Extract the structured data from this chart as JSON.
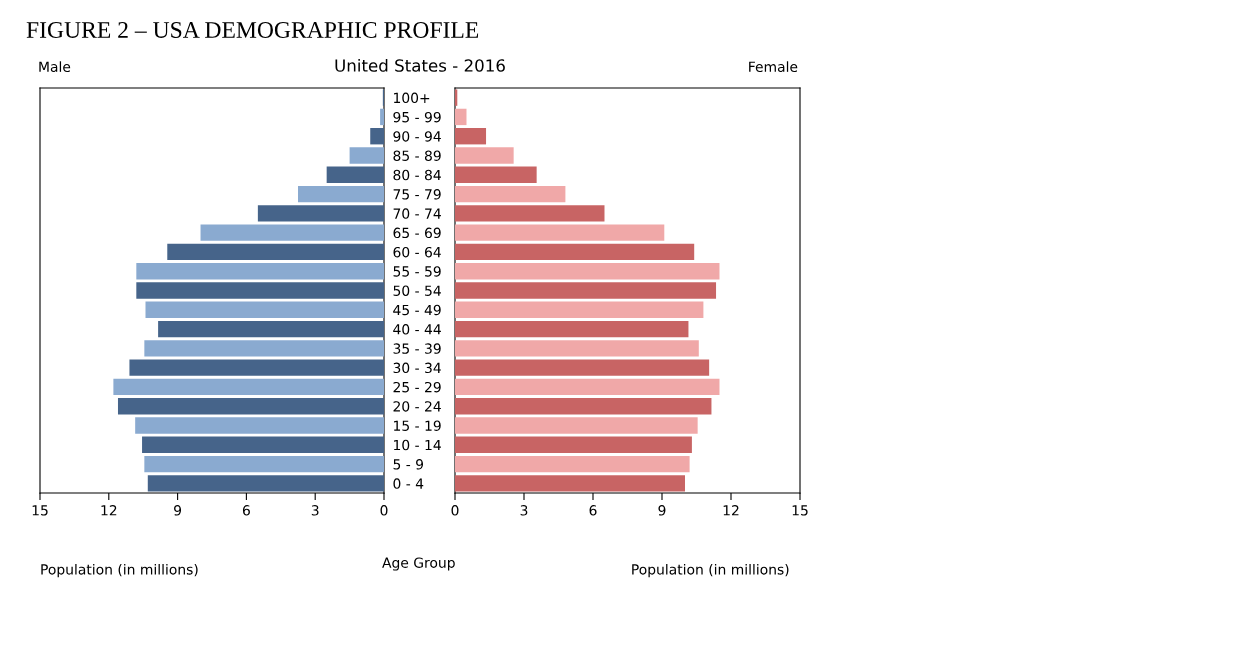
{
  "chart_data": [
    {
      "type": "bar",
      "orientation": "horizontal",
      "title": "FIGURE 2 – USA DEMOGRAPHIC PROFILE",
      "subtitle": "United States - 2016",
      "xlabel": "Population (in millions)",
      "annotations": [
        "Male"
      ],
      "tick_labels": "x",
      "values": [
        0.05,
        0.17,
        0.6,
        1.5,
        2.5,
        3.75,
        5.5,
        8.0,
        9.45,
        10.8,
        10.8,
        10.4,
        9.85,
        10.45,
        11.1,
        11.8,
        11.6,
        10.85,
        10.55,
        10.45,
        10.3
      ],
      "colors": [
        "#46648a",
        "#8aaad0",
        "#46648a",
        "#8aaad0",
        "#46648a",
        "#8aaad0",
        "#46648a",
        "#8aaad0",
        "#46648a",
        "#8aaad0",
        "#46648a",
        "#8aaad0",
        "#46648a",
        "#8aaad0",
        "#46648a",
        "#8aaad0",
        "#46648a",
        "#8aaad0",
        "#46648a",
        "#8aaad0",
        "#46648a"
      ],
      "xlim": [
        15,
        0
      ],
      "xticks": [
        15,
        12,
        9,
        6,
        3,
        0
      ],
      "grid": false,
      "legend": false
    },
    {
      "type": "bar",
      "orientation": "horizontal",
      "xlabel": "Population (in millions)",
      "ylabel": "Age Group",
      "annotations": [
        "Female"
      ],
      "categories": [
        "100+",
        "95 - 99",
        "90 - 94",
        "85 - 89",
        "80 - 84",
        "75 - 79",
        "70 - 74",
        "65 - 69",
        "60 - 64",
        "55 - 59",
        "50 - 54",
        "45 - 49",
        "40 - 44",
        "35 - 39",
        "30 - 34",
        "25 - 29",
        "20 - 24",
        "15 - 19",
        "10 - 14",
        "5 - 9",
        "0 - 4"
      ],
      "values": [
        0.1,
        0.5,
        1.35,
        2.55,
        3.55,
        4.8,
        6.5,
        9.1,
        10.4,
        11.5,
        11.35,
        10.8,
        10.15,
        10.6,
        11.05,
        11.5,
        11.15,
        10.55,
        10.3,
        10.2,
        10.0
      ],
      "colors": [
        "#c86464",
        "#f0a8a8",
        "#c86464",
        "#f0a8a8",
        "#c86464",
        "#f0a8a8",
        "#c86464",
        "#f0a8a8",
        "#c86464",
        "#f0a8a8",
        "#c86464",
        "#f0a8a8",
        "#c86464",
        "#f0a8a8",
        "#c86464",
        "#f0a8a8",
        "#c86464",
        "#f0a8a8",
        "#c86464",
        "#f0a8a8",
        "#c86464"
      ],
      "xlim": [
        0,
        15
      ],
      "xticks": [
        0,
        3,
        6,
        9,
        12,
        15
      ],
      "grid": false,
      "legend": false
    }
  ]
}
